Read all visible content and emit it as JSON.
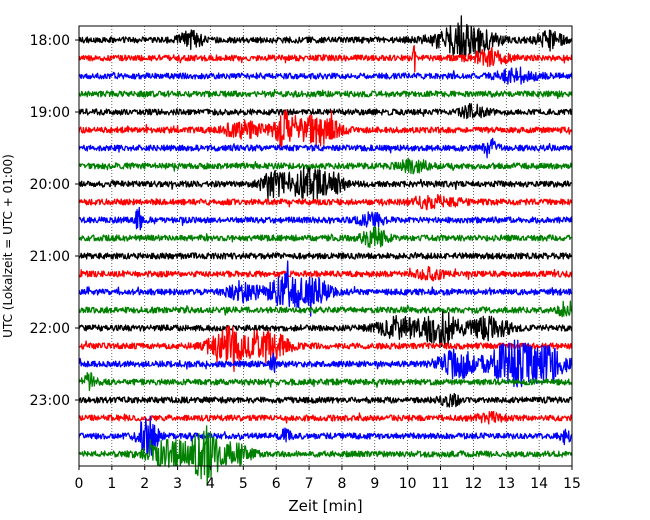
{
  "chart_data": {
    "type": "line",
    "title": "",
    "xlabel": "Zeit  [min]",
    "ylabel": "UTC (Lokalzeit = UTC + 01:00)",
    "xlim": [
      0,
      15
    ],
    "x_ticks": [
      "0",
      "1",
      "2",
      "3",
      "4",
      "5",
      "6",
      "7",
      "8",
      "9",
      "10",
      "11",
      "12",
      "13",
      "14",
      "15"
    ],
    "y_tick_labels": [
      "18:00",
      "19:00",
      "20:00",
      "21:00",
      "22:00",
      "23:00"
    ],
    "grid": "vertical dotted",
    "colors": [
      "#000000",
      "#ff0000",
      "#0000ff",
      "#008000"
    ],
    "series": [
      {
        "start": "18:00",
        "color": "#000000",
        "events": [
          {
            "t": 3.4,
            "amp": 0.35,
            "w": 0.5
          },
          {
            "t": 11.7,
            "amp": 0.7,
            "w": 1.2
          },
          {
            "t": 14.3,
            "amp": 0.4,
            "w": 0.5
          }
        ]
      },
      {
        "start": "18:15",
        "color": "#ff0000",
        "events": [
          {
            "t": 10.2,
            "amp": 1.0,
            "w": 0.05
          },
          {
            "t": 12.5,
            "amp": 0.3,
            "w": 0.8
          }
        ]
      },
      {
        "start": "18:30",
        "color": "#0000ff",
        "events": [
          {
            "t": 13.3,
            "amp": 0.3,
            "w": 0.8
          }
        ]
      },
      {
        "start": "18:45",
        "color": "#008000",
        "events": []
      },
      {
        "start": "19:00",
        "color": "#000000",
        "events": [
          {
            "t": 12.0,
            "amp": 0.3,
            "w": 0.5
          }
        ]
      },
      {
        "start": "19:15",
        "color": "#ff0000",
        "events": [
          {
            "t": 5.0,
            "amp": 0.4,
            "w": 0.8
          },
          {
            "t": 6.3,
            "amp": 0.8,
            "w": 0.5
          },
          {
            "t": 7.3,
            "amp": 0.7,
            "w": 0.8
          }
        ]
      },
      {
        "start": "19:30",
        "color": "#0000ff",
        "events": [
          {
            "t": 12.5,
            "amp": 0.4,
            "w": 0.3
          }
        ]
      },
      {
        "start": "19:45",
        "color": "#008000",
        "events": [
          {
            "t": 10.2,
            "amp": 0.3,
            "w": 0.6
          }
        ]
      },
      {
        "start": "20:00",
        "color": "#000000",
        "events": [
          {
            "t": 6.0,
            "amp": 0.6,
            "w": 0.6
          },
          {
            "t": 7.0,
            "amp": 0.7,
            "w": 0.8
          },
          {
            "t": 7.8,
            "amp": 0.4,
            "w": 0.4
          }
        ]
      },
      {
        "start": "20:15",
        "color": "#ff0000",
        "events": [
          {
            "t": 10.8,
            "amp": 0.25,
            "w": 1.0
          }
        ]
      },
      {
        "start": "20:30",
        "color": "#0000ff",
        "events": [
          {
            "t": 1.8,
            "amp": 0.5,
            "w": 0.15
          },
          {
            "t": 8.9,
            "amp": 0.3,
            "w": 0.5
          }
        ]
      },
      {
        "start": "20:45",
        "color": "#008000",
        "events": [
          {
            "t": 9.0,
            "amp": 0.4,
            "w": 0.5
          }
        ]
      },
      {
        "start": "21:00",
        "color": "#000000",
        "events": []
      },
      {
        "start": "21:15",
        "color": "#ff0000",
        "events": [
          {
            "t": 10.7,
            "amp": 0.25,
            "w": 0.5
          }
        ]
      },
      {
        "start": "21:30",
        "color": "#0000ff",
        "events": [
          {
            "t": 5.0,
            "amp": 0.5,
            "w": 0.6
          },
          {
            "t": 6.3,
            "amp": 0.8,
            "w": 0.7
          },
          {
            "t": 7.2,
            "amp": 0.6,
            "w": 0.6
          }
        ]
      },
      {
        "start": "21:45",
        "color": "#008000",
        "events": [
          {
            "t": 14.8,
            "amp": 0.3,
            "w": 0.3
          }
        ]
      },
      {
        "start": "22:00",
        "color": "#000000",
        "events": [
          {
            "t": 9.7,
            "amp": 0.5,
            "w": 0.8
          },
          {
            "t": 11.0,
            "amp": 0.8,
            "w": 0.8
          },
          {
            "t": 12.5,
            "amp": 0.5,
            "w": 0.8
          }
        ]
      },
      {
        "start": "22:15",
        "color": "#ff0000",
        "events": [
          {
            "t": 4.5,
            "amp": 0.8,
            "w": 0.8
          },
          {
            "t": 5.7,
            "amp": 0.7,
            "w": 0.9
          }
        ]
      },
      {
        "start": "22:30",
        "color": "#0000ff",
        "events": [
          {
            "t": 5.9,
            "amp": 0.5,
            "w": 0.1
          },
          {
            "t": 11.5,
            "amp": 0.6,
            "w": 0.8
          },
          {
            "t": 13.2,
            "amp": 1.0,
            "w": 1.0
          },
          {
            "t": 14.3,
            "amp": 0.7,
            "w": 0.8
          }
        ]
      },
      {
        "start": "22:45",
        "color": "#008000",
        "events": [
          {
            "t": 0.3,
            "amp": 0.35,
            "w": 0.3
          }
        ]
      },
      {
        "start": "23:00",
        "color": "#000000",
        "events": [
          {
            "t": 11.3,
            "amp": 0.25,
            "w": 0.4
          }
        ]
      },
      {
        "start": "23:15",
        "color": "#ff0000",
        "events": [
          {
            "t": 12.5,
            "amp": 0.2,
            "w": 0.5
          }
        ]
      },
      {
        "start": "23:30",
        "color": "#0000ff",
        "events": [
          {
            "t": 2.1,
            "amp": 1.0,
            "w": 0.4
          },
          {
            "t": 6.3,
            "amp": 0.3,
            "w": 0.2
          },
          {
            "t": 14.8,
            "amp": 0.3,
            "w": 0.2
          }
        ]
      },
      {
        "start": "23:45",
        "color": "#008000",
        "events": [
          {
            "t": 2.8,
            "amp": 0.6,
            "w": 1.0
          },
          {
            "t": 3.9,
            "amp": 1.2,
            "w": 0.6
          },
          {
            "t": 4.8,
            "amp": 0.5,
            "w": 0.6
          }
        ]
      }
    ]
  }
}
